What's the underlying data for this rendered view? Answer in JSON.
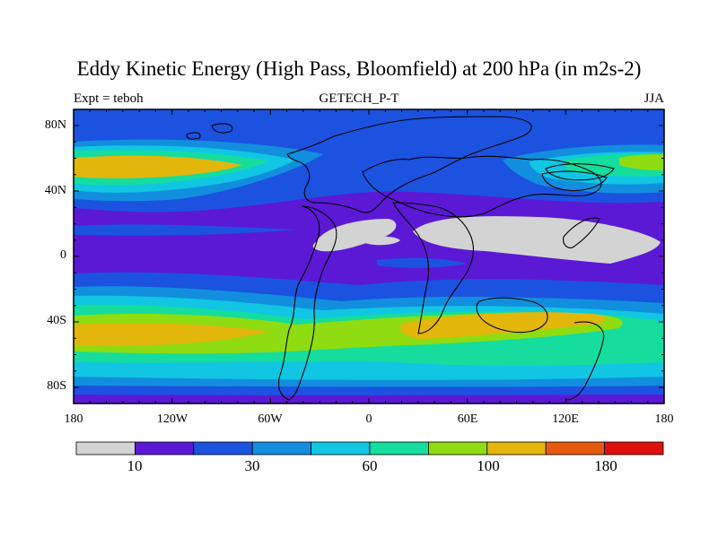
{
  "header": {
    "title": "Eddy Kinetic Energy (High Pass, Bloomfield) at 200 hPa (in m2s-2)",
    "left_label": "Expt = teboh",
    "center_label": "GETECH_P-T",
    "right_label": "JJA"
  },
  "axes": {
    "lat_ticks": [
      "80N",
      "40N",
      "0",
      "40S",
      "80S"
    ],
    "lon_ticks": [
      "180",
      "120W",
      "60W",
      "0",
      "60E",
      "120E",
      "180"
    ]
  },
  "colorbar": {
    "colors": [
      "#d3d3d3",
      "#5b19d6",
      "#1c52e0",
      "#118fde",
      "#10c6e3",
      "#14dd9e",
      "#8fdc10",
      "#e3b60c",
      "#e7590d",
      "#e0100e"
    ],
    "labels": [
      "10",
      "30",
      "60",
      "100",
      "180"
    ]
  },
  "map_colors": {
    "violet": "#5b19d6",
    "blue": "#1c52e0",
    "medblue": "#118fde",
    "cyan": "#10c6e3",
    "aqua": "#14dd9e",
    "green": "#8fdc10",
    "gold": "#e3b60c",
    "gray": "#d3d3d3"
  }
}
